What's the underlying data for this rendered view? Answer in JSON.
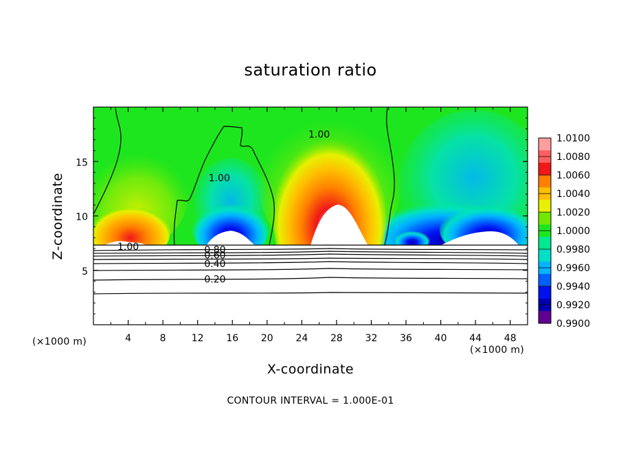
{
  "chart_data": {
    "type": "heatmap",
    "title": "saturation ratio",
    "xlabel": "X-coordinate",
    "ylabel": "Z-coordinate",
    "x_unit_left": "(×1000 m)",
    "x_unit_right": "(×1000 m)",
    "xlim": [
      0,
      50
    ],
    "ylim": [
      0,
      20
    ],
    "x_ticks": [
      4,
      8,
      12,
      16,
      20,
      24,
      28,
      32,
      36,
      40,
      44,
      48
    ],
    "y_ticks": [
      5,
      10,
      15
    ],
    "footer": "CONTOUR INTERVAL = 1.000E-01",
    "colorbar": {
      "levels": [
        "1.0100",
        "1.0080",
        "1.0060",
        "1.0040",
        "1.0020",
        "1.0000",
        "0.9980",
        "0.9960",
        "0.9940",
        "0.9920",
        "0.9900"
      ],
      "colors": [
        "#ff9e9e",
        "#ff6060",
        "#f01818",
        "#ff8000",
        "#ffbe00",
        "#e8f000",
        "#70e800",
        "#1ee61e",
        "#00e890",
        "#00e0c8",
        "#00b4ff",
        "#0060ff",
        "#0010f0",
        "#0000b0",
        "#600090"
      ]
    },
    "contour_labels": [
      {
        "label": "1.00",
        "x": 4,
        "y": 7.2
      },
      {
        "label": "1.00",
        "x": 14.5,
        "y": 13.5
      },
      {
        "label": "1.00",
        "x": 26,
        "y": 17.5
      },
      {
        "label": "0.80",
        "x": 14,
        "y": 6.9
      },
      {
        "label": "0.60",
        "x": 14,
        "y": 6.4
      },
      {
        "label": "0.40",
        "x": 14,
        "y": 5.6
      },
      {
        "label": "0.20",
        "x": 14,
        "y": 4.2
      }
    ],
    "grid": false
  }
}
